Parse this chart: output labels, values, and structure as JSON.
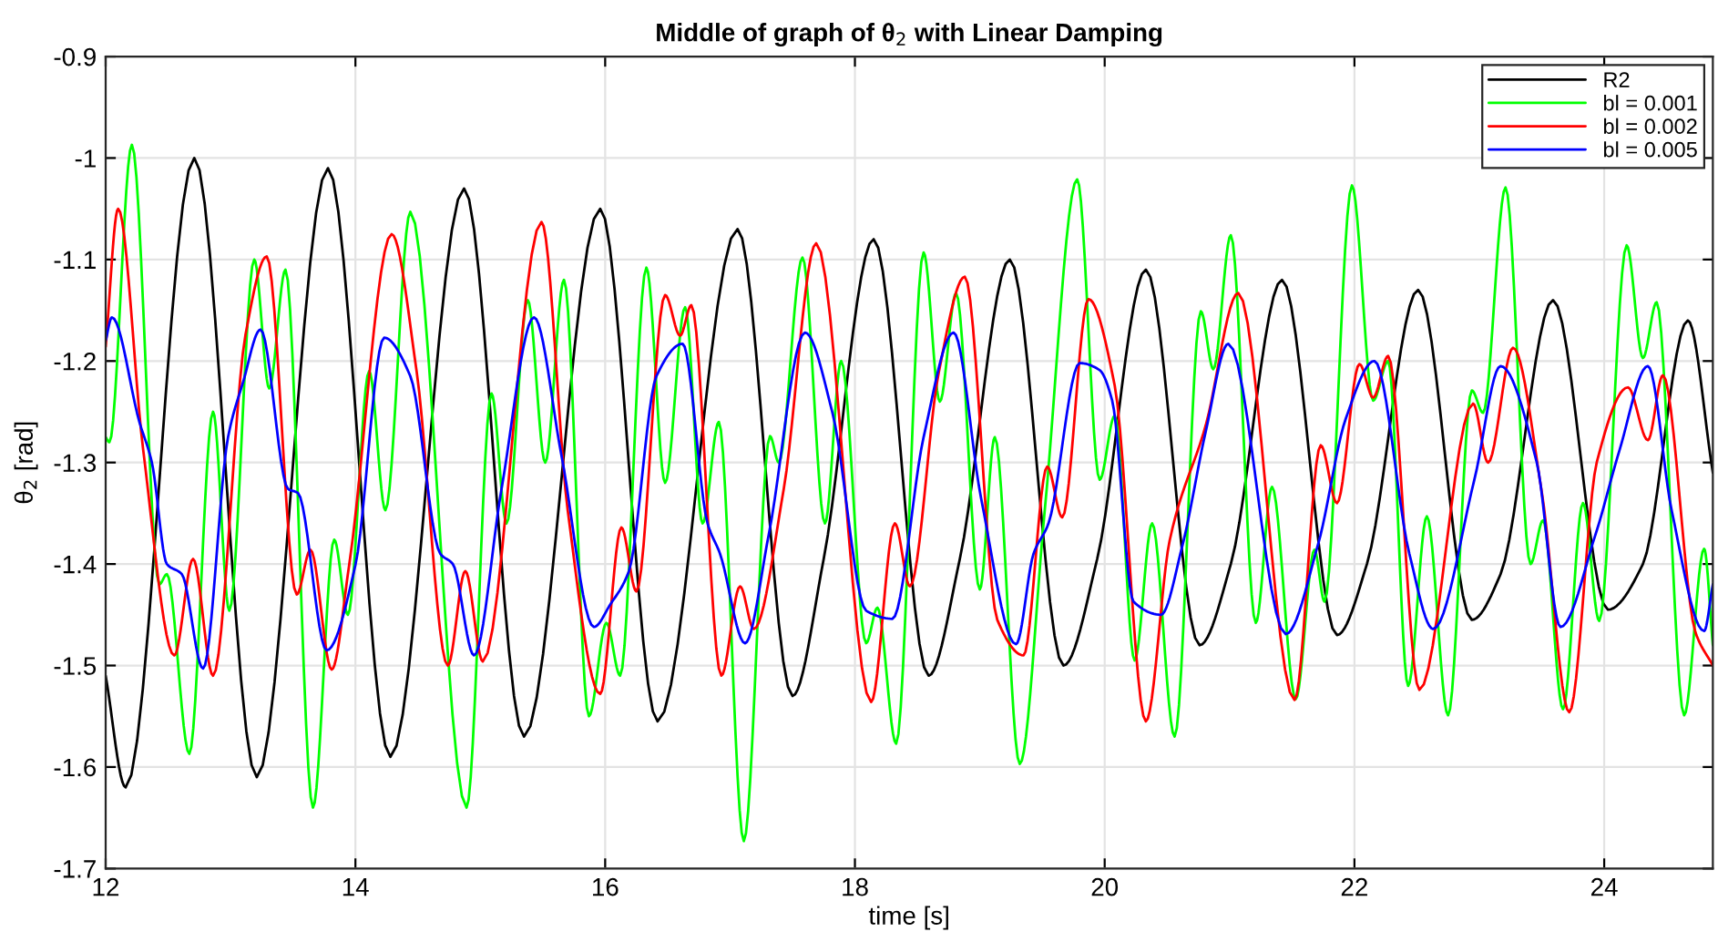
{
  "chart_data": {
    "type": "line",
    "title": "Middle of graph of θ$_{2}$ with Linear Damping",
    "xlabel": "time [s]",
    "ylabel": "θ$_{2}$ [rad]",
    "xlim": [
      12,
      24.87
    ],
    "ylim": [
      -1.7,
      -0.9
    ],
    "xticks": [
      12,
      14,
      16,
      18,
      20,
      22,
      24
    ],
    "yticks": [
      -1.7,
      -1.6,
      -1.5,
      -1.4,
      -1.3,
      -1.2,
      -1.1,
      -1,
      -0.9
    ],
    "grid": true,
    "legend": "top right",
    "line_style": "solid",
    "marker": "none",
    "series": [
      {
        "name": "R2",
        "color": "#000000",
        "x": [
          12.0,
          12.16,
          12.71,
          13.21,
          13.78,
          14.28,
          14.87,
          15.35,
          15.96,
          16.42,
          17.06,
          17.5,
          17.75,
          18.15,
          18.59,
          18.84,
          19.24,
          19.67,
          19.94,
          20.33,
          20.76,
          21.01,
          21.42,
          21.86,
          22.1,
          22.51,
          22.94,
          23.17,
          23.59,
          24.03,
          24.31,
          24.67,
          24.87
        ],
        "values": [
          -1.51,
          -1.62,
          -1.0,
          -1.61,
          -1.01,
          -1.59,
          -1.03,
          -1.57,
          -1.05,
          -1.555,
          -1.07,
          -1.53,
          -1.395,
          -1.08,
          -1.51,
          -1.395,
          -1.1,
          -1.5,
          -1.395,
          -1.11,
          -1.48,
          -1.4,
          -1.12,
          -1.47,
          -1.4,
          -1.13,
          -1.455,
          -1.41,
          -1.14,
          -1.445,
          -1.4,
          -1.16,
          -1.31
        ]
      },
      {
        "name": "bl = 0.001",
        "color": "#00ff00",
        "x": [
          12.0,
          12.03,
          12.21,
          12.43,
          12.49,
          12.67,
          12.86,
          12.99,
          13.19,
          13.31,
          13.44,
          13.66,
          13.83,
          13.94,
          14.11,
          14.24,
          14.44,
          14.89,
          15.09,
          15.21,
          15.38,
          15.52,
          15.67,
          15.87,
          16.01,
          16.12,
          16.33,
          16.48,
          16.64,
          16.78,
          16.91,
          17.11,
          17.32,
          17.39,
          17.58,
          17.76,
          17.89,
          18.09,
          18.18,
          18.33,
          18.55,
          18.68,
          18.81,
          19.0,
          19.12,
          19.32,
          19.52,
          19.78,
          19.96,
          20.08,
          20.24,
          20.38,
          20.56,
          20.77,
          20.87,
          21.01,
          21.21,
          21.34,
          21.53,
          21.68,
          21.76,
          21.98,
          22.15,
          22.27,
          22.43,
          22.58,
          22.75,
          22.94,
          23.03,
          23.21,
          23.41,
          23.51,
          23.67,
          23.83,
          23.96,
          24.18,
          24.31,
          24.42,
          24.64,
          24.8,
          24.87
        ],
        "values": [
          -1.275,
          -1.28,
          -0.987,
          -1.42,
          -1.41,
          -1.587,
          -1.25,
          -1.446,
          -1.1,
          -1.227,
          -1.11,
          -1.64,
          -1.376,
          -1.45,
          -1.21,
          -1.347,
          -1.053,
          -1.64,
          -1.232,
          -1.36,
          -1.14,
          -1.3,
          -1.12,
          -1.55,
          -1.458,
          -1.51,
          -1.108,
          -1.32,
          -1.147,
          -1.36,
          -1.26,
          -1.673,
          -1.274,
          -1.3,
          -1.098,
          -1.36,
          -1.2,
          -1.478,
          -1.443,
          -1.577,
          -1.093,
          -1.24,
          -1.133,
          -1.425,
          -1.275,
          -1.597,
          -1.347,
          -1.021,
          -1.317,
          -1.254,
          -1.495,
          -1.36,
          -1.57,
          -1.151,
          -1.208,
          -1.076,
          -1.458,
          -1.324,
          -1.533,
          -1.386,
          -1.437,
          -1.027,
          -1.239,
          -1.2,
          -1.52,
          -1.353,
          -1.549,
          -1.229,
          -1.251,
          -1.029,
          -1.4,
          -1.357,
          -1.543,
          -1.34,
          -1.456,
          -1.086,
          -1.197,
          -1.142,
          -1.549,
          -1.385,
          -1.48
        ]
      },
      {
        "name": "bl = 0.002",
        "color": "#ff0000",
        "x": [
          12.0,
          12.1,
          12.3,
          12.55,
          12.7,
          12.86,
          13.12,
          13.29,
          13.53,
          13.64,
          13.81,
          13.95,
          14.29,
          14.49,
          14.74,
          14.88,
          15.02,
          15.49,
          15.7,
          15.96,
          16.13,
          16.25,
          16.48,
          16.6,
          16.69,
          16.93,
          17.08,
          17.19,
          17.43,
          17.69,
          18.13,
          18.32,
          18.44,
          18.67,
          18.88,
          19.14,
          19.35,
          19.54,
          19.66,
          19.87,
          20.08,
          20.33,
          20.52,
          20.81,
          21.07,
          21.52,
          21.73,
          21.86,
          22.04,
          22.15,
          22.27,
          22.52,
          22.95,
          23.07,
          23.27,
          23.5,
          23.72,
          23.94,
          24.19,
          24.35,
          24.47,
          24.73,
          24.87
        ],
        "values": [
          -1.186,
          -1.05,
          -1.287,
          -1.49,
          -1.395,
          -1.51,
          -1.174,
          -1.097,
          -1.43,
          -1.386,
          -1.504,
          -1.401,
          -1.075,
          -1.21,
          -1.5,
          -1.407,
          -1.496,
          -1.063,
          -1.347,
          -1.528,
          -1.364,
          -1.427,
          -1.135,
          -1.175,
          -1.145,
          -1.51,
          -1.422,
          -1.464,
          -1.326,
          -1.084,
          -1.536,
          -1.36,
          -1.422,
          -1.212,
          -1.117,
          -1.455,
          -1.49,
          -1.304,
          -1.354,
          -1.139,
          -1.224,
          -1.555,
          -1.377,
          -1.263,
          -1.133,
          -1.534,
          -1.283,
          -1.34,
          -1.203,
          -1.236,
          -1.195,
          -1.524,
          -1.242,
          -1.3,
          -1.187,
          -1.329,
          -1.546,
          -1.3,
          -1.226,
          -1.278,
          -1.214,
          -1.467,
          -1.5
        ]
      },
      {
        "name": "bl = 0.005",
        "color": "#0000ff",
        "x": [
          12.0,
          12.05,
          12.27,
          12.37,
          12.49,
          12.61,
          12.78,
          12.98,
          13.1,
          13.24,
          13.46,
          13.54,
          13.77,
          14.0,
          14.23,
          14.44,
          14.68,
          14.78,
          14.95,
          15.17,
          15.43,
          15.65,
          15.91,
          16.04,
          16.19,
          16.41,
          16.62,
          16.82,
          16.92,
          17.12,
          17.31,
          17.6,
          17.82,
          18.09,
          18.3,
          18.55,
          18.79,
          19.01,
          19.29,
          19.43,
          19.55,
          19.8,
          19.96,
          20.06,
          20.23,
          20.45,
          20.62,
          20.81,
          20.99,
          21.45,
          21.71,
          21.93,
          22.16,
          22.44,
          22.63,
          22.96,
          23.17,
          23.46,
          23.65,
          23.93,
          24.12,
          24.35,
          24.54,
          24.8,
          24.87
        ],
        "values": [
          -1.18,
          -1.157,
          -1.26,
          -1.3,
          -1.4,
          -1.41,
          -1.503,
          -1.275,
          -1.221,
          -1.169,
          -1.326,
          -1.33,
          -1.485,
          -1.401,
          -1.177,
          -1.215,
          -1.39,
          -1.4,
          -1.49,
          -1.326,
          -1.157,
          -1.293,
          -1.462,
          -1.44,
          -1.407,
          -1.215,
          -1.183,
          -1.36,
          -1.39,
          -1.478,
          -1.371,
          -1.172,
          -1.251,
          -1.446,
          -1.454,
          -1.275,
          -1.172,
          -1.335,
          -1.479,
          -1.39,
          -1.36,
          -1.202,
          -1.209,
          -1.239,
          -1.437,
          -1.45,
          -1.383,
          -1.269,
          -1.183,
          -1.469,
          -1.38,
          -1.257,
          -1.2,
          -1.39,
          -1.464,
          -1.317,
          -1.205,
          -1.3,
          -1.462,
          -1.371,
          -1.289,
          -1.205,
          -1.347,
          -1.466,
          -1.42
        ]
      }
    ]
  }
}
